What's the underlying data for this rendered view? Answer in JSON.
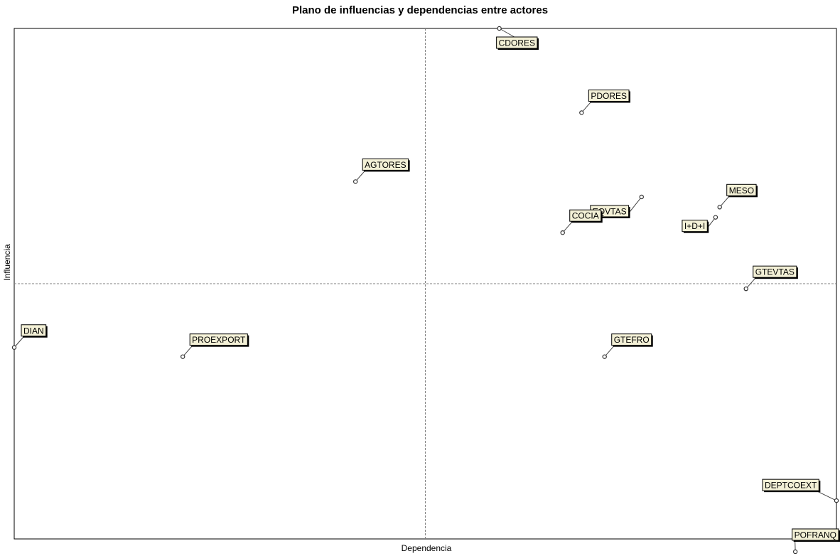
{
  "chart_data": {
    "type": "scatter",
    "title": "Plano de influencias y dependencias entre actores",
    "xlabel": "Dependencia",
    "ylabel": "Influencia",
    "xlim": [
      0,
      1000
    ],
    "ylim": [
      0,
      1000
    ],
    "grid": false,
    "crosshair": {
      "x": 500,
      "y": 500
    },
    "colors": {
      "label_fill": "#f3f0d6",
      "marker": "#333333",
      "axis": "#000000"
    },
    "points": [
      {
        "name": "CDORES",
        "x": 590,
        "y": 1000
      },
      {
        "name": "PDORES",
        "x": 690,
        "y": 835
      },
      {
        "name": "AGTORES",
        "x": 415,
        "y": 700
      },
      {
        "name": "EQVTAS",
        "x": 763,
        "y": 670
      },
      {
        "name": "MESO",
        "x": 858,
        "y": 650
      },
      {
        "name": "COCIA",
        "x": 667,
        "y": 600
      },
      {
        "name": "I+D+I",
        "x": 853,
        "y": 630
      },
      {
        "name": "GTEVTAS",
        "x": 890,
        "y": 490
      },
      {
        "name": "DIAN",
        "x": 0,
        "y": 375
      },
      {
        "name": "PROEXPORT",
        "x": 205,
        "y": 357
      },
      {
        "name": "GTEFRO",
        "x": 718,
        "y": 357
      },
      {
        "name": "DEPTCOEXT",
        "x": 1000,
        "y": 75
      },
      {
        "name": "POFRANQ",
        "x": 950,
        "y": -25
      }
    ]
  }
}
